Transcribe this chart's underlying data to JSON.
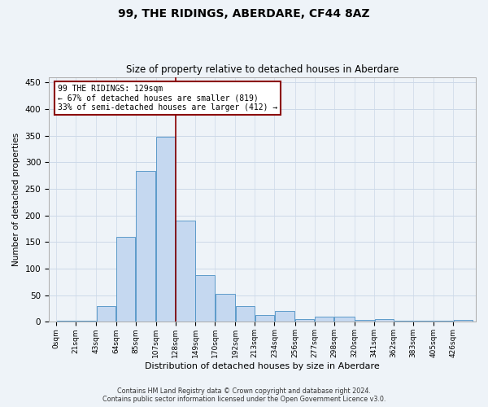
{
  "title": "99, THE RIDINGS, ABERDARE, CF44 8AZ",
  "subtitle": "Size of property relative to detached houses in Aberdare",
  "xlabel": "Distribution of detached houses by size in Aberdare",
  "ylabel": "Number of detached properties",
  "footer_line1": "Contains HM Land Registry data © Crown copyright and database right 2024.",
  "footer_line2": "Contains public sector information licensed under the Open Government Licence v3.0.",
  "annotation_line1": "99 THE RIDINGS: 129sqm",
  "annotation_line2": "← 67% of detached houses are smaller (819)",
  "annotation_line3": "33% of semi-detached houses are larger (412) →",
  "property_size": 129,
  "bar_left_edges": [
    0,
    21,
    43,
    64,
    85,
    107,
    128,
    149,
    170,
    192,
    213,
    234,
    256,
    277,
    298,
    320,
    341,
    362,
    383,
    405,
    426
  ],
  "bar_widths": [
    21,
    22,
    21,
    21,
    22,
    21,
    21,
    21,
    22,
    21,
    21,
    22,
    21,
    21,
    22,
    21,
    21,
    21,
    22,
    21,
    21
  ],
  "bar_heights": [
    2,
    2,
    30,
    160,
    284,
    348,
    191,
    88,
    52,
    30,
    13,
    20,
    5,
    10,
    10,
    4,
    5,
    2,
    2,
    2,
    3
  ],
  "bar_color": "#c5d8f0",
  "bar_edge_color": "#4a90c4",
  "vline_x": 128,
  "vline_color": "#8b0000",
  "annotation_box_color": "#8b0000",
  "annotation_bg": "#ffffff",
  "grid_color": "#ccd9e8",
  "bg_color": "#eef3f8",
  "fig_bg_color": "#eef3f8",
  "ylim": [
    0,
    460
  ],
  "yticks": [
    0,
    50,
    100,
    150,
    200,
    250,
    300,
    350,
    400,
    450
  ],
  "tick_labels": [
    "0sqm",
    "21sqm",
    "43sqm",
    "64sqm",
    "85sqm",
    "107sqm",
    "128sqm",
    "149sqm",
    "170sqm",
    "192sqm",
    "213sqm",
    "234sqm",
    "256sqm",
    "277sqm",
    "298sqm",
    "320sqm",
    "341sqm",
    "362sqm",
    "383sqm",
    "405sqm",
    "426sqm"
  ]
}
